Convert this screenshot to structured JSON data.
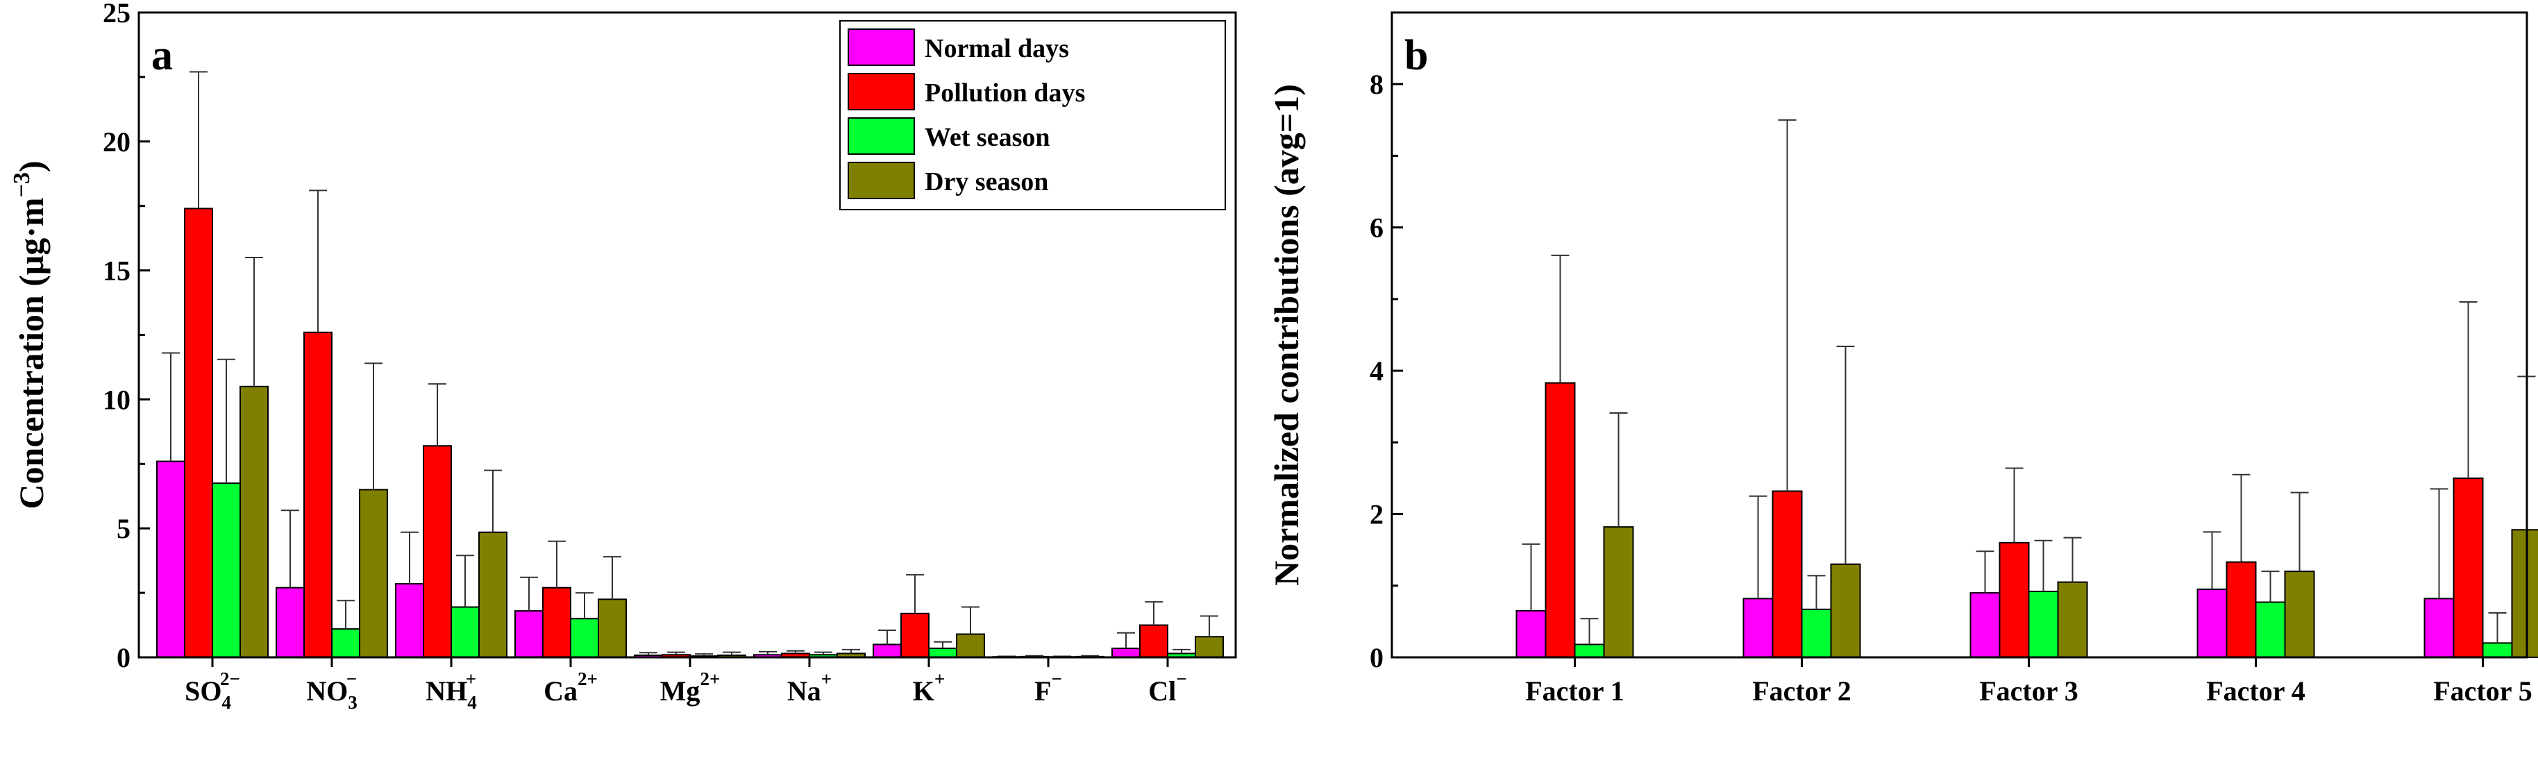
{
  "chart_data": [
    {
      "type": "bar",
      "panel_label": "a",
      "ylabel": "Concentration (μg·m⁻³)",
      "ylim": [
        0,
        25
      ],
      "yticks": [
        0,
        5,
        10,
        15,
        20,
        25
      ],
      "categories": [
        {
          "base": "SO",
          "sub": "4",
          "sup": "2−"
        },
        {
          "base": "NO",
          "sub": "3",
          "sup": "−"
        },
        {
          "base": "NH",
          "sub": "4",
          "sup": "+"
        },
        {
          "base": "Ca",
          "sub": "",
          "sup": "2+"
        },
        {
          "base": "Mg",
          "sub": "",
          "sup": "2+"
        },
        {
          "base": "Na",
          "sub": "",
          "sup": "+"
        },
        {
          "base": "K",
          "sub": "",
          "sup": "+"
        },
        {
          "base": "F",
          "sub": "",
          "sup": "−"
        },
        {
          "base": "Cl",
          "sub": "",
          "sup": "−"
        }
      ],
      "series": [
        {
          "name": "Normal days",
          "color": "#ff00ff",
          "values": [
            7.6,
            2.7,
            2.85,
            1.8,
            0.08,
            0.1,
            0.5,
            0.02,
            0.35
          ],
          "errors": [
            4.2,
            3.0,
            2.0,
            1.3,
            0.1,
            0.12,
            0.55,
            0.02,
            0.6
          ]
        },
        {
          "name": "Pollution days",
          "color": "#ff0000",
          "values": [
            17.4,
            12.6,
            8.2,
            2.7,
            0.1,
            0.15,
            1.7,
            0.03,
            1.25
          ],
          "errors": [
            5.3,
            5.5,
            2.4,
            1.8,
            0.1,
            0.1,
            1.5,
            0.03,
            0.9
          ]
        },
        {
          "name": "Wet season",
          "color": "#00ff33",
          "values": [
            6.75,
            1.1,
            1.95,
            1.5,
            0.05,
            0.1,
            0.35,
            0.02,
            0.15
          ],
          "errors": [
            4.8,
            1.1,
            2.0,
            1.0,
            0.08,
            0.1,
            0.25,
            0.02,
            0.15
          ]
        },
        {
          "name": "Dry season",
          "color": "#808000",
          "values": [
            10.5,
            6.5,
            4.85,
            2.25,
            0.08,
            0.15,
            0.9,
            0.03,
            0.8
          ],
          "errors": [
            5.0,
            4.9,
            2.4,
            1.65,
            0.12,
            0.15,
            1.05,
            0.03,
            0.8
          ]
        }
      ],
      "legend": {
        "position": "top-right"
      }
    },
    {
      "type": "bar",
      "panel_label": "b",
      "ylabel": "Normalized contributions (avg=1)",
      "ylim": [
        0,
        9
      ],
      "yticks": [
        0,
        2,
        4,
        6,
        8
      ],
      "categories": [
        "Factor 1",
        "Factor 2",
        "Factor 3",
        "Factor 4",
        "Factor 5"
      ],
      "series": [
        {
          "name": "Normal days",
          "color": "#ff00ff",
          "values": [
            0.65,
            0.82,
            0.9,
            0.95,
            0.82
          ],
          "errors": [
            0.93,
            1.43,
            0.58,
            0.8,
            1.53
          ]
        },
        {
          "name": "Pollution days",
          "color": "#ff0000",
          "values": [
            3.83,
            2.32,
            1.6,
            1.33,
            2.5
          ],
          "errors": [
            1.78,
            5.18,
            1.04,
            1.22,
            2.46
          ]
        },
        {
          "name": "Wet season",
          "color": "#00ff33",
          "values": [
            0.18,
            0.67,
            0.92,
            0.77,
            0.2
          ],
          "errors": [
            0.36,
            0.47,
            0.71,
            0.43,
            0.42
          ]
        },
        {
          "name": "Dry season",
          "color": "#808000",
          "values": [
            1.82,
            1.3,
            1.05,
            1.2,
            1.78
          ],
          "errors": [
            1.59,
            3.04,
            0.62,
            1.1,
            2.14
          ]
        }
      ]
    }
  ]
}
